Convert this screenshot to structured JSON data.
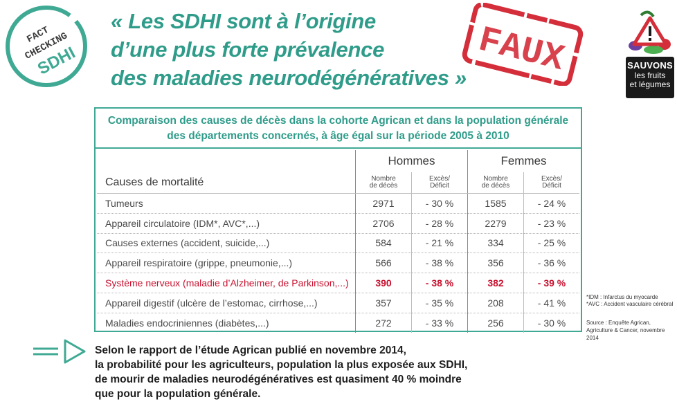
{
  "badge": {
    "line1": "FACT",
    "line2": "CHECKING",
    "line3": "SDHI",
    "color": "#3fa994"
  },
  "headline": {
    "line1": "« Les SDHI sont à l’origine",
    "line2": "d’une plus forte prévalence",
    "line3": "des maladies neurodégénératives »",
    "color": "#2f9c8a"
  },
  "stamp": {
    "text": "FAUX",
    "color": "#d42e3a"
  },
  "logo": {
    "line1": "SAUVONS",
    "line2": "les fruits",
    "line3": "et légumes",
    "icon": "fruits-vegetables-warning-icon"
  },
  "table": {
    "title_line1": "Comparaison des causes de décès dans la cohorte Agrican et dans la population générale",
    "title_line2": "des départements concernés, à âge égal sur la période 2005 à 2010",
    "group_men": "Hommes",
    "group_women": "Femmes",
    "col_cause": "Causes de mortalité",
    "col_count_l1": "Nombre",
    "col_count_l2": "de décès",
    "col_excess_l1": "Excès/",
    "col_excess_l2": "Déficit",
    "rows": [
      {
        "cause": "Tumeurs",
        "men_n": "2971",
        "men_d": "- 30 %",
        "women_n": "1585",
        "women_d": "- 24 %"
      },
      {
        "cause": "Appareil circulatoire (IDM*, AVC*,...)",
        "men_n": "2706",
        "men_d": "- 28 %",
        "women_n": "2279",
        "women_d": "- 23 %"
      },
      {
        "cause": "Causes externes (accident, suicide,...)",
        "men_n": "584",
        "men_d": "- 21 %",
        "women_n": "334",
        "women_d": "- 25 %"
      },
      {
        "cause": "Appareil respiratoire (grippe, pneumonie,...)",
        "men_n": "566",
        "men_d": "- 38 %",
        "women_n": "356",
        "women_d": "- 36 %"
      },
      {
        "cause": "Système nerveux (maladie d’Alzheimer, de Parkinson,...)",
        "men_n": "390",
        "men_d": "- 38 %",
        "women_n": "382",
        "women_d": "- 39 %"
      },
      {
        "cause": "Appareil digestif (ulcère de l’estomac, cirrhose,...)",
        "men_n": "357",
        "men_d": "- 35 %",
        "women_n": "208",
        "women_d": "- 41 %"
      },
      {
        "cause": "Maladies endocriniennes (diabètes,...)",
        "men_n": "272",
        "men_d": "- 33 %",
        "women_n": "256",
        "women_d": "- 30 %"
      }
    ],
    "highlight_color": "#c8102e",
    "border_color": "#3fa994"
  },
  "notes": {
    "idm": "*IDM : Infarctus du myocarde",
    "avc": "*AVC : Accident vasculaire cérébral",
    "source_l1": "Source :  Enquête Agrican,",
    "source_l2": "Agriculture & Cancer, novembre 2014"
  },
  "conclusion": {
    "line1": "Selon le rapport de l’étude Agrican publié en novembre 2014,",
    "line2": "la probabilité pour les agriculteurs, population la plus exposée aux SDHI,",
    "line3": "de mourir de maladies neurodégénératives est quasiment 40 % moindre",
    "line4": "que pour la population générale."
  }
}
